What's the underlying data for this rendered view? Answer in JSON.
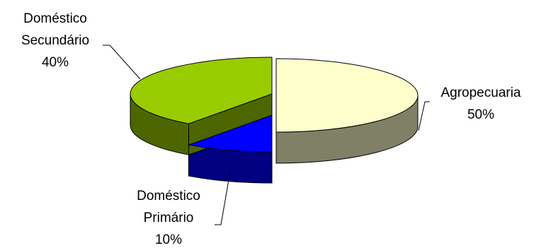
{
  "chart_data": {
    "type": "pie",
    "style": "3d-exploded",
    "start_angle_deg": 90,
    "direction": "clockwise",
    "series": [
      {
        "labels": [
          {
            "lines": [
              "Agropecuaria",
              "50%"
            ]
          },
          {
            "lines": [
              "Doméstico",
              "Primário",
              "10%"
            ]
          },
          {
            "lines": [
              "Doméstico",
              "Secundário",
              "40%"
            ]
          }
        ],
        "values": [
          50,
          10,
          40
        ],
        "colors": [
          "#FFFFCC",
          "#0000FF",
          "#99CC00"
        ],
        "side_colors": [
          "#808066",
          "#000080",
          "#4D6600"
        ]
      }
    ],
    "legend": "none"
  }
}
